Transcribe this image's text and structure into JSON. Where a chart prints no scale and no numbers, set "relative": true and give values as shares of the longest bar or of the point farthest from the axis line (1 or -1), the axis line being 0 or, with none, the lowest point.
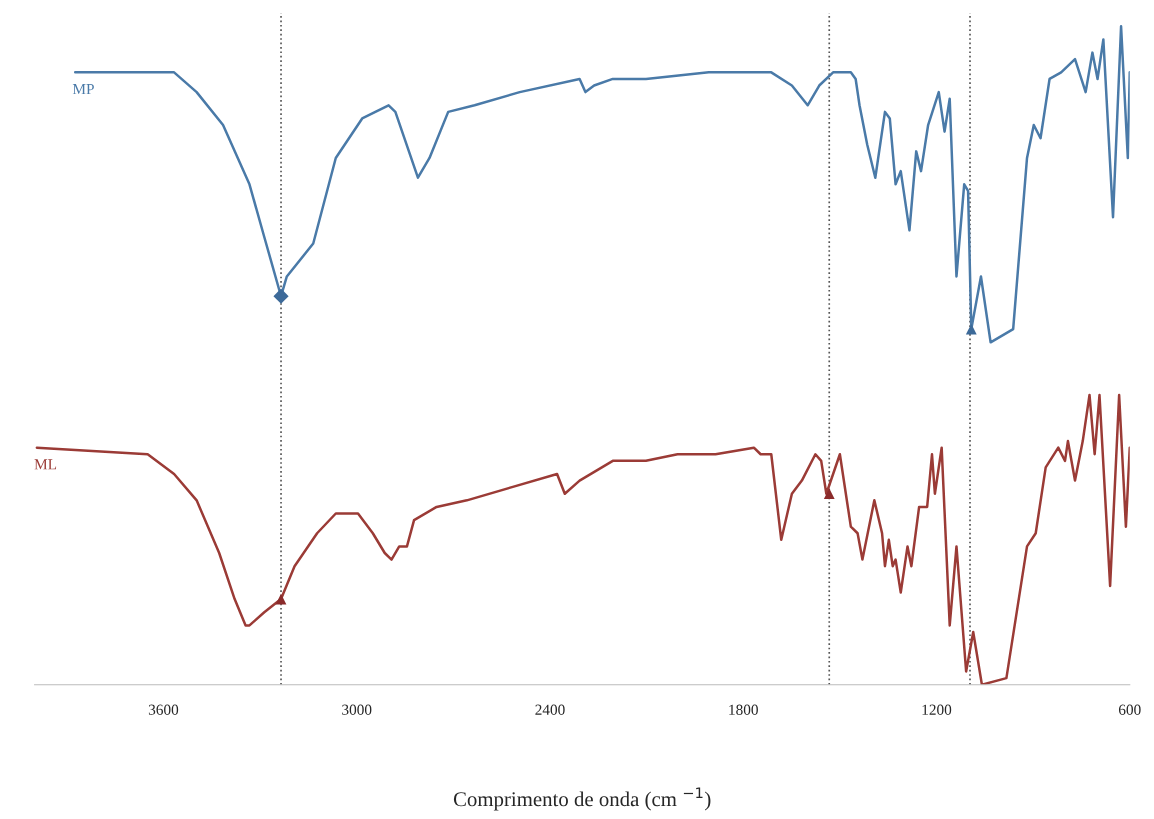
{
  "chart_data": {
    "type": "line",
    "relative": true,
    "xlabel": "Comprimento de onda (cm $^{−1}$)",
    "xlim": [
      4000,
      600
    ],
    "xticks": [
      3600,
      3000,
      2400,
      1800,
      1200,
      600
    ],
    "grid": false,
    "legend": false,
    "marker": "none",
    "line_style": "solid",
    "series": [
      {
        "name": "MP",
        "color": "#4a7aa8",
        "x": [
          3874,
          3567,
          3497,
          3415,
          3333,
          3287,
          3235,
          3217,
          3135,
          3065,
          2983,
          2901,
          2880,
          2810,
          2774,
          2716,
          2634,
          2494,
          2308,
          2290,
          2263,
          2205,
          2102,
          1907,
          1758,
          1713,
          1649,
          1600,
          1564,
          1521,
          1466,
          1451,
          1439,
          1415,
          1390,
          1360,
          1345,
          1327,
          1311,
          1284,
          1263,
          1248,
          1226,
          1193,
          1175,
          1159,
          1138,
          1114,
          1102,
          1092,
          1062,
          1032,
          962,
          919,
          898,
          877,
          849,
          813,
          770,
          737,
          716,
          700,
          682,
          652,
          627,
          606,
          600
        ],
        "values": [
          0.93,
          0.93,
          0.9,
          0.85,
          0.76,
          0.68,
          0.59,
          0.62,
          0.67,
          0.8,
          0.86,
          0.88,
          0.87,
          0.77,
          0.8,
          0.87,
          0.88,
          0.9,
          0.92,
          0.9,
          0.91,
          0.92,
          0.92,
          0.93,
          0.93,
          0.93,
          0.91,
          0.88,
          0.91,
          0.93,
          0.93,
          0.92,
          0.88,
          0.82,
          0.77,
          0.87,
          0.86,
          0.76,
          0.78,
          0.69,
          0.81,
          0.78,
          0.85,
          0.9,
          0.84,
          0.89,
          0.62,
          0.76,
          0.75,
          0.54,
          0.62,
          0.52,
          0.54,
          0.8,
          0.85,
          0.83,
          0.92,
          0.93,
          0.95,
          0.9,
          0.96,
          0.92,
          0.98,
          0.71,
          1.0,
          0.8,
          0.93
        ]
      },
      {
        "name": "ML",
        "color": "#9b3b36",
        "x": [
          3993,
          3649,
          3567,
          3497,
          3427,
          3379,
          3345,
          3333,
          3287,
          3235,
          3193,
          3123,
          3065,
          2996,
          2950,
          2913,
          2892,
          2868,
          2844,
          2822,
          2752,
          2658,
          2518,
          2378,
          2354,
          2308,
          2205,
          2153,
          2102,
          2004,
          1886,
          1767,
          1746,
          1713,
          1682,
          1649,
          1618,
          1576,
          1558,
          1542,
          1500,
          1466,
          1445,
          1430,
          1393,
          1369,
          1360,
          1348,
          1336,
          1327,
          1311,
          1290,
          1278,
          1254,
          1229,
          1214,
          1205,
          1184,
          1159,
          1138,
          1108,
          1086,
          1059,
          983,
          919,
          892,
          861,
          822,
          801,
          792,
          770,
          746,
          725,
          709,
          694,
          661,
          633,
          612,
          600
        ],
        "values": [
          0.36,
          0.35,
          0.32,
          0.28,
          0.2,
          0.13,
          0.09,
          0.09,
          0.11,
          0.13,
          0.18,
          0.23,
          0.26,
          0.26,
          0.23,
          0.2,
          0.19,
          0.21,
          0.21,
          0.25,
          0.27,
          0.28,
          0.3,
          0.32,
          0.29,
          0.31,
          0.34,
          0.34,
          0.34,
          0.35,
          0.35,
          0.36,
          0.35,
          0.35,
          0.22,
          0.29,
          0.31,
          0.35,
          0.34,
          0.29,
          0.35,
          0.24,
          0.23,
          0.19,
          0.28,
          0.23,
          0.18,
          0.22,
          0.18,
          0.19,
          0.14,
          0.21,
          0.18,
          0.27,
          0.27,
          0.35,
          0.29,
          0.36,
          0.09,
          0.21,
          0.02,
          0.08,
          0.0,
          0.01,
          0.21,
          0.23,
          0.33,
          0.36,
          0.34,
          0.37,
          0.31,
          0.37,
          0.44,
          0.35,
          0.44,
          0.15,
          0.44,
          0.24,
          0.36
        ]
      },
      {
        "type": "scatter",
        "marker": "diamond",
        "color": "#3d6a99",
        "x": [
          3235
        ],
        "values": [
          0.59
        ]
      },
      {
        "type": "scatter",
        "marker": "triangle",
        "color": "#3d6a99",
        "x": [
          1092
        ],
        "values": [
          0.54
        ]
      },
      {
        "type": "scatter",
        "marker": "triangle",
        "color": "#8b2b2b",
        "x": [
          3235,
          1533
        ],
        "values": [
          0.13,
          0.29
        ]
      }
    ],
    "ref_lines": [
      {
        "axis": "x",
        "value": 3235,
        "color": "#555555",
        "line_style": "dotted"
      },
      {
        "axis": "x",
        "value": 1533,
        "color": "#555555",
        "line_style": "dotted"
      },
      {
        "axis": "x",
        "value": 1096,
        "color": "#555555",
        "line_style": "dotted"
      }
    ]
  }
}
